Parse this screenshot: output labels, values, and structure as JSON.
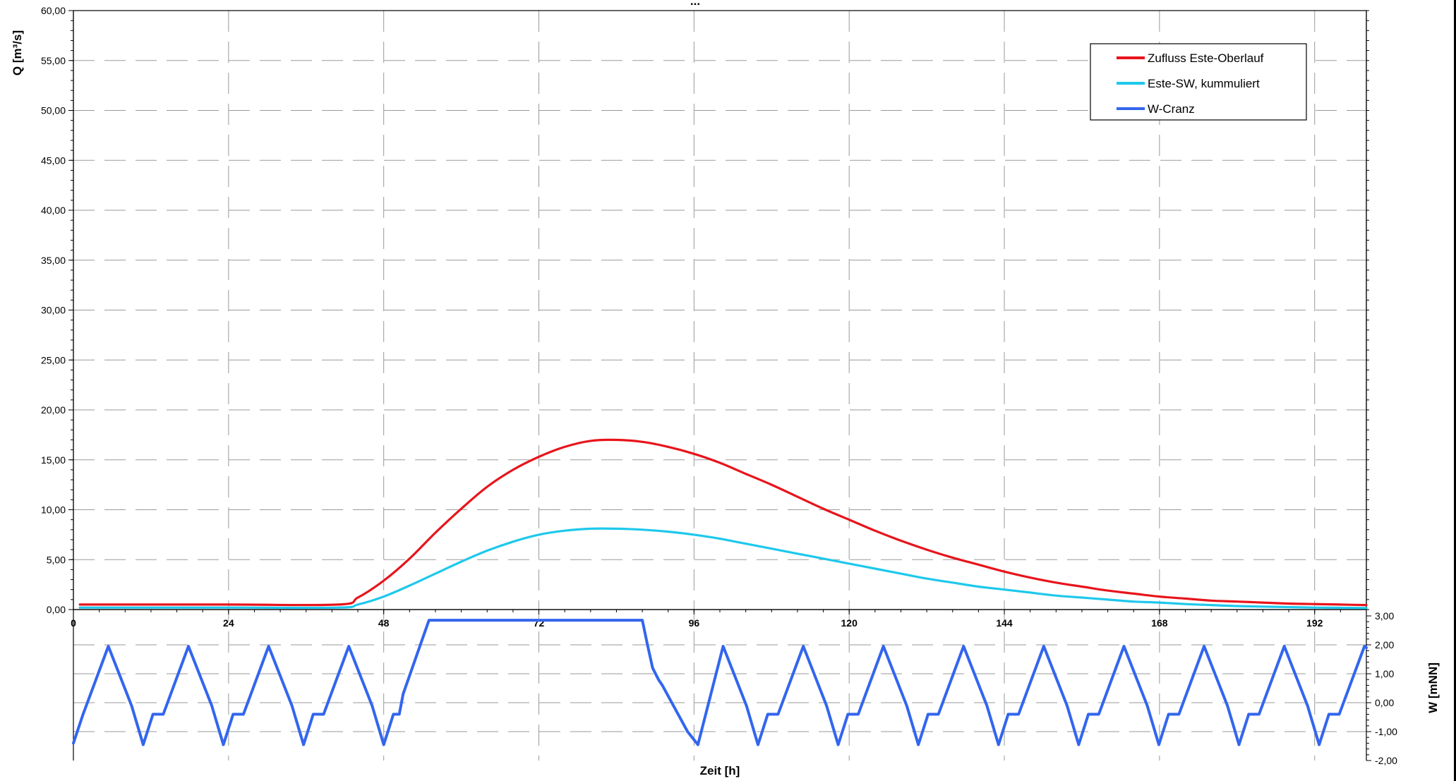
{
  "chart_data": {
    "type": "line",
    "title": "...",
    "xlabel": "Zeit [h]",
    "ylabel_left": "Q [m³/s]",
    "ylabel_right": "W [mNN]",
    "xlim": [
      0,
      200
    ],
    "ylim_left": [
      0,
      60
    ],
    "ylim_right": [
      -2,
      3
    ],
    "x_ticks": [
      "0",
      "24",
      "48",
      "72",
      "96",
      "120",
      "144",
      "168",
      "192"
    ],
    "y_ticks_left": [
      "60,00",
      "55,00",
      "50,00",
      "45,00",
      "40,00",
      "35,00",
      "30,00",
      "25,00",
      "20,00",
      "15,00",
      "10,00",
      "5,00",
      "0,00"
    ],
    "y_ticks_right": [
      "3,00",
      "2,00",
      "1,00",
      "0,00",
      "-1,00",
      "-2,00"
    ],
    "grid": true,
    "legend_position": "top-right",
    "series": [
      {
        "name": "Zufluss Este-Oberlauf",
        "color": "#e8141b",
        "axis": "left",
        "x": [
          1,
          24,
          41,
          44,
          48,
          52,
          56,
          60,
          64,
          68,
          72,
          76,
          80,
          84,
          88,
          92,
          96,
          100,
          104,
          108,
          112,
          116,
          120,
          124,
          128,
          132,
          136,
          140,
          144,
          148,
          152,
          156,
          160,
          164,
          168,
          172,
          176,
          180,
          184,
          188,
          192,
          196,
          200
        ],
        "y": [
          0.5,
          0.5,
          0.5,
          1.2,
          2.9,
          5.1,
          7.7,
          10.1,
          12.3,
          14.0,
          15.3,
          16.3,
          16.9,
          17.0,
          16.8,
          16.3,
          15.6,
          14.7,
          13.6,
          12.5,
          11.3,
          10.1,
          9.0,
          7.9,
          6.9,
          6.0,
          5.2,
          4.5,
          3.8,
          3.2,
          2.7,
          2.3,
          1.9,
          1.6,
          1.3,
          1.1,
          0.9,
          0.8,
          0.7,
          0.6,
          0.55,
          0.5,
          0.45
        ]
      },
      {
        "name": "Este-SW, kummuliert",
        "color": "#1ec8ec",
        "axis": "left",
        "x": [
          1,
          24,
          41,
          44,
          48,
          52,
          56,
          60,
          64,
          68,
          72,
          76,
          80,
          84,
          88,
          92,
          96,
          100,
          104,
          108,
          112,
          116,
          120,
          124,
          128,
          132,
          136,
          140,
          144,
          148,
          152,
          156,
          160,
          164,
          168,
          172,
          176,
          180,
          184,
          188,
          192,
          196,
          200
        ],
        "y": [
          0.2,
          0.2,
          0.2,
          0.5,
          1.3,
          2.4,
          3.6,
          4.8,
          5.9,
          6.8,
          7.5,
          7.9,
          8.1,
          8.1,
          8.0,
          7.8,
          7.5,
          7.1,
          6.6,
          6.1,
          5.6,
          5.1,
          4.6,
          4.1,
          3.6,
          3.1,
          2.7,
          2.3,
          2.0,
          1.7,
          1.4,
          1.2,
          1.0,
          0.8,
          0.7,
          0.55,
          0.45,
          0.35,
          0.3,
          0.25,
          0.2,
          0.18,
          0.15
        ]
      },
      {
        "name": "W-Cranz",
        "color": "#3366ee",
        "axis": "right",
        "x": [
          0,
          1.5,
          5.4,
          9.0,
          10.2,
          10.8,
          12.3,
          13.9,
          17.8,
          21.4,
          22.6,
          23.2,
          24.7,
          26.3,
          30.2,
          33.8,
          35.0,
          35.6,
          37.1,
          38.7,
          42.6,
          46.2,
          47.4,
          48.0,
          49.5,
          50.4,
          51.0,
          55.0,
          88.0,
          88.8,
          89.6,
          90.5,
          91.1,
          95.0,
          96.6,
          100.5,
          104.1,
          105.3,
          105.9,
          107.4,
          109.0,
          112.9,
          116.5,
          117.7,
          118.3,
          119.8,
          121.4,
          125.3,
          128.9,
          130.1,
          130.7,
          132.2,
          133.8,
          137.7,
          141.3,
          142.5,
          143.1,
          144.6,
          146.2,
          150.1,
          153.7,
          154.9,
          155.5,
          157.0,
          158.6,
          162.5,
          166.1,
          167.3,
          167.9,
          169.4,
          171.0,
          174.9,
          178.5,
          179.7,
          180.3,
          181.8,
          183.4,
          187.3,
          190.9,
          192.1,
          192.7,
          194.2,
          195.8,
          199.7,
          200
        ],
        "y": [
          -1.4,
          -0.4,
          1.95,
          -0.1,
          -1.0,
          -1.45,
          -0.4,
          -0.4,
          1.95,
          -0.1,
          -1.0,
          -1.45,
          -0.4,
          -0.4,
          1.95,
          -0.1,
          -1.0,
          -1.45,
          -0.4,
          -0.4,
          1.95,
          -0.1,
          -1.0,
          -1.45,
          -0.4,
          -0.4,
          0.3,
          2.85,
          2.85,
          2.0,
          1.2,
          0.8,
          0.6,
          -1.0,
          -1.45,
          1.95,
          -0.1,
          -1.0,
          -1.45,
          -0.4,
          -0.4,
          1.95,
          -0.1,
          -1.0,
          -1.45,
          -0.4,
          -0.4,
          1.95,
          -0.1,
          -1.0,
          -1.45,
          -0.4,
          -0.4,
          1.95,
          -0.1,
          -1.0,
          -1.45,
          -0.4,
          -0.4,
          1.95,
          -0.1,
          -1.0,
          -1.45,
          -0.4,
          -0.4,
          1.95,
          -0.1,
          -1.0,
          -1.45,
          -0.4,
          -0.4,
          1.95,
          -0.1,
          -1.0,
          -1.45,
          -0.4,
          -0.4,
          1.95,
          -0.1,
          -1.0,
          -1.45,
          -0.4,
          -0.4,
          1.95,
          1.9
        ]
      }
    ]
  }
}
